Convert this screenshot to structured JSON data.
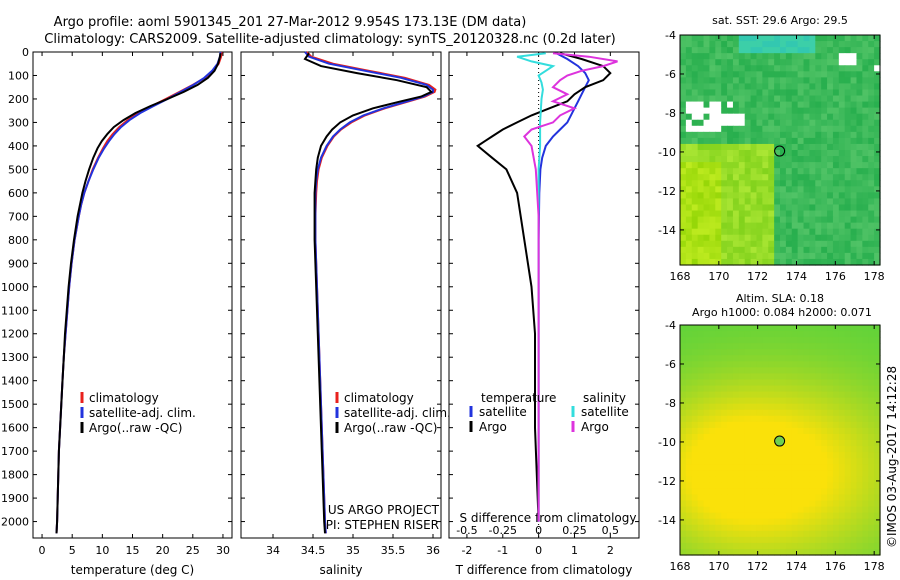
{
  "header": {
    "title_line1": "Argo profile: aoml 5901345_201 27-Mar-2012 9.954S 173.13E (DM data)",
    "title_line2": "Climatology: CARS2009. Satellite-adjusted climatology: synTS_20120328.nc (0.2d later)"
  },
  "colors": {
    "climatology": "#e8211d",
    "satellite": "#2233dd",
    "argo": "#000000",
    "sal_satellite": "#33dddd",
    "sal_argo": "#dd33dd"
  },
  "depth_axis": {
    "ticks": [
      0,
      100,
      200,
      300,
      400,
      500,
      600,
      700,
      800,
      900,
      1000,
      1100,
      1200,
      1300,
      1400,
      1500,
      1600,
      1700,
      1800,
      1900,
      2000
    ],
    "range": [
      0,
      2070
    ]
  },
  "chart_data": [
    {
      "type": "line",
      "id": "temperature",
      "xlabel": "temperature (deg C)",
      "xlim": [
        -1.5,
        31.5
      ],
      "xticks": [
        0,
        5,
        10,
        15,
        20,
        25,
        30
      ],
      "legend": {
        "position": "lower-middle",
        "entries": [
          "climatology",
          "satellite-adj. clim.",
          "Argo(..raw -QC)"
        ]
      },
      "series": [
        {
          "name": "climatology",
          "color_key": "climatology",
          "depth": [
            0,
            20,
            50,
            80,
            110,
            140,
            170,
            200,
            230,
            260,
            290,
            320,
            350,
            380,
            410,
            450,
            500,
            550,
            600,
            650,
            700,
            800,
            900,
            1000,
            1100,
            1200,
            1300,
            1400,
            1500,
            1600,
            1700,
            1800,
            1900,
            2000,
            2050
          ],
          "values": [
            29.8,
            29.7,
            29.3,
            28.4,
            27.0,
            25.0,
            22.8,
            20.5,
            18.2,
            16.0,
            14.2,
            12.8,
            11.7,
            10.8,
            10.1,
            9.3,
            8.4,
            7.7,
            7.0,
            6.5,
            6.1,
            5.4,
            4.9,
            4.5,
            4.2,
            3.9,
            3.6,
            3.4,
            3.2,
            3.0,
            2.8,
            2.7,
            2.6,
            2.5,
            2.4
          ]
        },
        {
          "name": "satellite-adj. clim.",
          "color_key": "satellite",
          "depth": [
            0,
            20,
            50,
            80,
            110,
            140,
            170,
            200,
            230,
            260,
            290,
            320,
            350,
            380,
            410,
            450,
            500,
            550,
            600,
            650,
            700,
            800,
            900,
            1000,
            1100,
            1200,
            1300,
            1400,
            1500,
            1600,
            1700,
            1800,
            1900,
            2000,
            2050
          ],
          "values": [
            29.6,
            29.5,
            29.1,
            28.2,
            26.9,
            25.1,
            23.0,
            20.8,
            18.5,
            16.3,
            14.5,
            13.1,
            12.0,
            11.1,
            10.3,
            9.4,
            8.5,
            7.7,
            7.0,
            6.5,
            6.1,
            5.4,
            4.9,
            4.5,
            4.2,
            3.9,
            3.6,
            3.4,
            3.2,
            3.0,
            2.8,
            2.7,
            2.6,
            2.5,
            2.4
          ]
        },
        {
          "name": "Argo(..raw -QC)",
          "color_key": "argo",
          "depth": [
            5,
            20,
            50,
            80,
            110,
            140,
            170,
            200,
            230,
            260,
            290,
            320,
            350,
            380,
            410,
            450,
            500,
            550,
            600,
            650,
            700,
            800,
            900,
            1000,
            1100,
            1200,
            1300,
            1400,
            1500,
            1600,
            1700,
            1800,
            1900,
            2000,
            2050
          ],
          "values": [
            29.6,
            29.5,
            29.2,
            28.6,
            27.5,
            25.8,
            23.5,
            20.8,
            18.0,
            15.5,
            13.5,
            11.9,
            10.8,
            9.9,
            9.2,
            8.5,
            7.8,
            7.2,
            6.7,
            6.3,
            5.9,
            5.3,
            4.8,
            4.4,
            4.1,
            3.8,
            3.6,
            3.4,
            3.2,
            3.0,
            2.8,
            2.7,
            2.6,
            2.5,
            2.4
          ]
        }
      ]
    },
    {
      "type": "line",
      "id": "salinity",
      "xlabel": "salinity",
      "xlim": [
        33.6,
        36.1
      ],
      "xticks": [
        34,
        34.5,
        35,
        35.5,
        36
      ],
      "legend": {
        "position": "lower-middle",
        "entries": [
          "climatology",
          "satellite-adj. clim.",
          "Argo(..raw -QC)"
        ]
      },
      "annotation": [
        "US ARGO PROJECT",
        "PI: STEPHEN RISER"
      ],
      "series": [
        {
          "name": "climatology",
          "color_key": "climatology",
          "depth": [
            0,
            20,
            50,
            80,
            110,
            140,
            160,
            170,
            190,
            210,
            240,
            270,
            300,
            330,
            360,
            400,
            450,
            500,
            550,
            600,
            700,
            800,
            900,
            1000,
            1200,
            1400,
            1600,
            1800,
            2000,
            2050
          ],
          "values": [
            34.42,
            34.48,
            34.75,
            35.2,
            35.65,
            35.95,
            36.03,
            36.02,
            35.9,
            35.7,
            35.4,
            35.15,
            34.98,
            34.85,
            34.76,
            34.68,
            34.61,
            34.57,
            34.55,
            34.54,
            34.53,
            34.53,
            34.54,
            34.55,
            34.57,
            34.59,
            34.61,
            34.63,
            34.65,
            34.66
          ]
        },
        {
          "name": "satellite-adj. clim.",
          "color_key": "satellite",
          "depth": [
            0,
            20,
            50,
            80,
            110,
            140,
            160,
            170,
            190,
            210,
            240,
            270,
            300,
            330,
            360,
            400,
            450,
            500,
            550,
            600,
            700,
            800,
            900,
            1000,
            1200,
            1400,
            1600,
            1800,
            2000,
            2050
          ],
          "values": [
            34.4,
            34.45,
            34.7,
            35.15,
            35.6,
            35.92,
            36.0,
            36.0,
            35.88,
            35.68,
            35.38,
            35.13,
            34.96,
            34.84,
            34.75,
            34.67,
            34.6,
            34.56,
            34.54,
            34.53,
            34.53,
            34.53,
            34.54,
            34.55,
            34.57,
            34.59,
            34.61,
            34.63,
            34.65,
            34.66
          ]
        },
        {
          "name": "Argo(..raw -QC)",
          "color_key": "argo",
          "depth": [
            5,
            30,
            60,
            90,
            120,
            150,
            170,
            190,
            210,
            240,
            270,
            300,
            330,
            360,
            400,
            450,
            500,
            550,
            600,
            700,
            800,
            900,
            1000,
            1200,
            1400,
            1600,
            1800,
            2000,
            2050
          ],
          "values": [
            34.45,
            34.4,
            34.6,
            35.05,
            35.55,
            35.92,
            35.98,
            35.85,
            35.6,
            35.25,
            35.0,
            34.84,
            34.74,
            34.67,
            34.6,
            34.56,
            34.54,
            34.53,
            34.52,
            34.52,
            34.52,
            34.53,
            34.54,
            34.56,
            34.58,
            34.6,
            34.62,
            34.64,
            34.65
          ]
        }
      ]
    },
    {
      "type": "line",
      "id": "difference",
      "xlabel": "T difference from climatology",
      "xlabel_top": "S difference from climatology",
      "xlim": [
        -2.5,
        2.8
      ],
      "xticks": [
        -2,
        -1,
        0,
        1,
        2
      ],
      "s_ticks_labels": [
        "-0.5",
        "-0.25",
        "0",
        "0.25",
        "0.5"
      ],
      "s_ticks_values": [
        -0.5,
        -0.25,
        0,
        0.25,
        0.5
      ],
      "s_scale": 4,
      "legend": {
        "position": "lower-middle",
        "temperature_title": "temperature",
        "salinity_title": "salinity",
        "entries": [
          "satellite",
          "Argo",
          "satellite",
          "Argo"
        ]
      },
      "series": [
        {
          "name": "T satellite",
          "color_key": "satellite",
          "depth": [
            5,
            30,
            60,
            90,
            120,
            150,
            180,
            210,
            240,
            270,
            300,
            330,
            360,
            400,
            450,
            500,
            600,
            800,
            1000,
            1200,
            1500,
            2000
          ],
          "values": [
            0.5,
            0.8,
            1.1,
            1.3,
            1.4,
            1.3,
            1.2,
            1.1,
            1.0,
            0.9,
            0.8,
            0.6,
            0.4,
            0.2,
            0.1,
            0.05,
            0.02,
            0.0,
            0.0,
            0.0,
            0.0,
            0.0
          ]
        },
        {
          "name": "T Argo",
          "color_key": "argo",
          "depth": [
            5,
            30,
            60,
            90,
            120,
            150,
            180,
            210,
            240,
            270,
            300,
            330,
            360,
            380,
            400,
            450,
            500,
            600,
            700,
            800,
            900,
            1000,
            1200,
            1400,
            1600,
            2000
          ],
          "values": [
            0.6,
            1.2,
            1.8,
            2.0,
            1.8,
            1.3,
            1.0,
            0.8,
            0.3,
            -0.2,
            -0.6,
            -1.0,
            -1.3,
            -1.5,
            -1.7,
            -1.3,
            -0.9,
            -0.6,
            -0.5,
            -0.4,
            -0.3,
            -0.2,
            -0.1,
            -0.1,
            -0.1,
            0.0
          ]
        },
        {
          "name": "S satellite",
          "color_key": "sal_satellite",
          "depth": [
            5,
            20,
            40,
            60,
            80,
            100,
            130,
            160,
            200,
            300,
            400,
            500,
            700,
            1000,
            1500,
            2000
          ],
          "values": [
            0.05,
            -0.15,
            -0.05,
            0.1,
            0.05,
            0.0,
            0.02,
            0.03,
            0.02,
            0.01,
            0.01,
            0.0,
            0.0,
            0.0,
            0.0,
            0.0
          ]
        },
        {
          "name": "S Argo",
          "color_key": "sal_argo",
          "depth": [
            5,
            20,
            40,
            60,
            80,
            100,
            120,
            150,
            180,
            210,
            240,
            270,
            300,
            330,
            360,
            400,
            500,
            700,
            1000,
            2000
          ],
          "values": [
            0.1,
            0.35,
            0.55,
            0.45,
            0.3,
            0.2,
            0.15,
            0.1,
            0.2,
            0.1,
            0.25,
            0.15,
            0.1,
            -0.05,
            -0.1,
            -0.05,
            -0.02,
            0.0,
            0.0,
            0.0
          ]
        }
      ]
    },
    {
      "type": "heatmap",
      "id": "sst_map",
      "title": "sat. SST: 29.6  Argo: 29.5",
      "xticks": [
        168,
        170,
        172,
        174,
        176,
        178
      ],
      "yticks": [
        -4,
        -6,
        -8,
        -10,
        -12,
        -14
      ],
      "xlim": [
        168,
        178.3
      ],
      "ylim": [
        -15.8,
        -4
      ],
      "marker": {
        "lon": 173.13,
        "lat": -9.954
      }
    },
    {
      "type": "heatmap",
      "id": "sla_map",
      "title_line1": "Altim. SLA: 0.18",
      "title_line2": "Argo h1000: 0.084  h2000: 0.071",
      "xticks": [
        168,
        170,
        172,
        174,
        176,
        178
      ],
      "yticks": [
        -4,
        -6,
        -8,
        -10,
        -12,
        -14
      ],
      "xlim": [
        168,
        178.3
      ],
      "ylim": [
        -15.8,
        -4
      ],
      "marker": {
        "lon": 173.13,
        "lat": -9.954
      }
    }
  ],
  "credit": "©IMOS 03-Aug-2017 14:12:28"
}
